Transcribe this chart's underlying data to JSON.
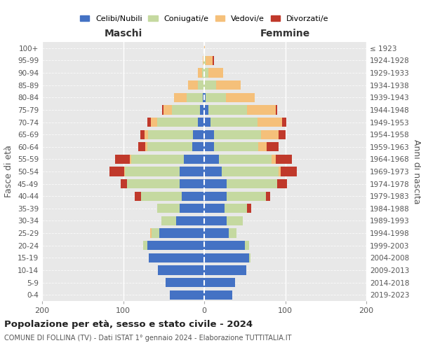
{
  "age_groups": [
    "0-4",
    "5-9",
    "10-14",
    "15-19",
    "20-24",
    "25-29",
    "30-34",
    "35-39",
    "40-44",
    "45-49",
    "50-54",
    "55-59",
    "60-64",
    "65-69",
    "70-74",
    "75-79",
    "80-84",
    "85-89",
    "90-94",
    "95-99",
    "100+"
  ],
  "birth_years": [
    "2019-2023",
    "2014-2018",
    "2009-2013",
    "2004-2008",
    "1999-2003",
    "1994-1998",
    "1989-1993",
    "1984-1988",
    "1979-1983",
    "1974-1978",
    "1969-1973",
    "1964-1968",
    "1959-1963",
    "1954-1958",
    "1949-1953",
    "1944-1948",
    "1939-1943",
    "1934-1938",
    "1929-1933",
    "1924-1928",
    "≤ 1923"
  ],
  "colors": {
    "celibe": "#4472c4",
    "coniugato": "#c5d9a0",
    "vedovo": "#f5c07a",
    "divorziato": "#c0392b"
  },
  "males": {
    "celibe": [
      42,
      48,
      57,
      68,
      70,
      55,
      35,
      30,
      28,
      30,
      30,
      25,
      15,
      14,
      8,
      5,
      2,
      0,
      0,
      0,
      0
    ],
    "coniugato": [
      0,
      0,
      0,
      0,
      5,
      10,
      18,
      28,
      50,
      65,
      68,
      65,
      55,
      55,
      50,
      35,
      20,
      8,
      3,
      1,
      0
    ],
    "vedovo": [
      0,
      0,
      0,
      0,
      0,
      2,
      0,
      0,
      0,
      0,
      1,
      2,
      3,
      5,
      8,
      10,
      15,
      12,
      5,
      1,
      0
    ],
    "divorziato": [
      0,
      0,
      0,
      0,
      0,
      0,
      0,
      0,
      8,
      8,
      18,
      18,
      8,
      5,
      4,
      2,
      0,
      0,
      0,
      0,
      0
    ]
  },
  "females": {
    "nubile": [
      35,
      38,
      52,
      55,
      50,
      30,
      28,
      25,
      28,
      28,
      22,
      18,
      12,
      12,
      8,
      5,
      2,
      0,
      0,
      0,
      0
    ],
    "coniugata": [
      0,
      0,
      0,
      2,
      5,
      10,
      20,
      28,
      48,
      62,
      70,
      65,
      55,
      58,
      58,
      48,
      25,
      15,
      5,
      2,
      0
    ],
    "vedova": [
      0,
      0,
      0,
      0,
      0,
      0,
      0,
      0,
      0,
      0,
      2,
      5,
      10,
      22,
      30,
      35,
      35,
      30,
      18,
      8,
      1
    ],
    "divorziata": [
      0,
      0,
      0,
      0,
      0,
      0,
      0,
      5,
      5,
      12,
      20,
      20,
      15,
      8,
      5,
      2,
      0,
      0,
      0,
      2,
      0
    ]
  },
  "title": "Popolazione per età, sesso e stato civile - 2024",
  "subtitle": "COMUNE DI FOLLINA (TV) - Dati ISTAT 1° gennaio 2024 - Elaborazione TUTTITALIA.IT",
  "xlabel_left": "Maschi",
  "xlabel_right": "Femmine",
  "ylabel_left": "Fasce di età",
  "ylabel_right": "Anni di nascita",
  "xlim": 200,
  "legend_labels": [
    "Celibi/Nubili",
    "Coniugati/e",
    "Vedovi/e",
    "Divorzati/e"
  ]
}
